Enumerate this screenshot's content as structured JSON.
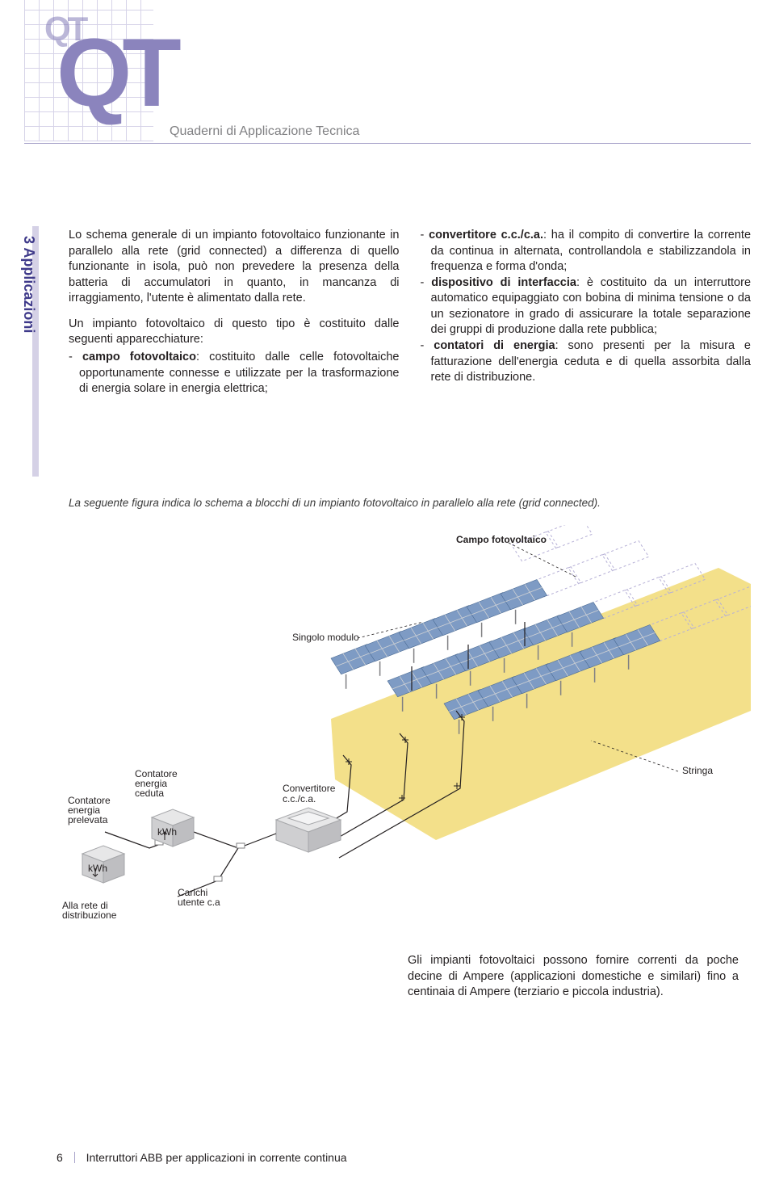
{
  "header": {
    "logo_small": "QT",
    "logo_big": "QT",
    "subtitle": "Quaderni di Applicazione Tecnica"
  },
  "sidebar": {
    "section_label": "3 Applicazioni"
  },
  "body": {
    "left": {
      "p1": "Lo schema generale di un impianto fotovoltaico funzionante in parallelo alla rete (grid connected) a differenza di quello funzionante in isola, può non prevedere la presenza della batteria di accumulatori in quanto, in mancanza di irraggiamento, l'utente è alimentato dalla rete.",
      "p2": "Un impianto fotovoltaico di questo tipo è costituito dalle seguenti apparecchiature:",
      "b1_bold": "campo fotovoltaico",
      "b1_rest": ": costituito dalle celle fotovoltaiche opportunamente connesse e utilizzate per la trasformazione di energia solare in energia elettrica;"
    },
    "right": {
      "b1_bold": "convertitore c.c./c.a.",
      "b1_rest": ": ha il compito di convertire la corrente da continua in alternata, controllandola e stabilizzandola in frequenza e forma d'onda;",
      "b2_bold": "dispositivo di interfaccia",
      "b2_rest": ": è costituito da un interruttore automatico equipaggiato con bobina di minima tensione o da un sezionatore in grado di assicurare la totale separazione dei gruppi di produzione dalla rete pubblica;",
      "b3_bold": "contatori di energia",
      "b3_rest": ": sono presenti per la misura e fatturazione dell'energia ceduta e di quella assorbita dalla rete di distribuzione."
    }
  },
  "figure_caption": "La seguente figura indica lo schema a blocchi di un impianto fotovoltaico in parallelo alla rete (grid connected).",
  "diagram": {
    "type": "technical-block-diagram-isometric",
    "background": "#ffffff",
    "colors": {
      "panel_fill": "#7e9bc4",
      "panel_frame": "#d0d2d4",
      "panel_dark_edge": "#4a6a93",
      "shadow_area": "#f3e08a",
      "ghost_stroke": "#b6b0d6",
      "wire": "#231f20",
      "box_fill": "#e7e7e8",
      "box_edge": "#a6a7aa",
      "connector": "#808083"
    },
    "labels": {
      "campo": "Campo fotovoltaico",
      "modulo": "Singolo modulo",
      "stringa": "Stringa",
      "convertitore": "Convertitore\nc.c./c.a.",
      "cont_ceduta": "Contatore\nenergia\nceduta",
      "cont_prelevata": "Contatore\nenergia\nprelevata",
      "kwh": "kWh",
      "carichi": "Carichi\nutente c.a",
      "rete": "Alla rete di\ndistribuzione"
    },
    "pv_array": {
      "solid_rows": 3,
      "solid_cols": 6,
      "ghost_cols": 3,
      "panel_subcells": [
        3,
        2
      ]
    }
  },
  "closing_paragraph": "Gli impianti fotovoltaici possono fornire correnti da poche decine di Ampere (applicazioni domestiche e similari) fino a centinaia di Ampere (terziario e piccola industria).",
  "footer": {
    "page": "6",
    "title": "Interruttori ABB per applicazioni in corrente continua"
  }
}
